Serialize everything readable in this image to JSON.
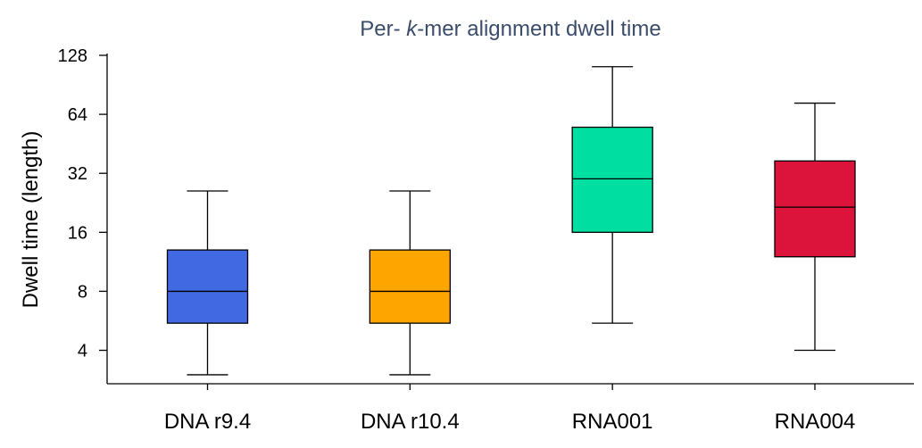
{
  "chart_data": {
    "type": "box",
    "title": {
      "prefix": "Per- ",
      "italic": "k",
      "suffix": "-mer alignment dwell time"
    },
    "xlabel": "",
    "ylabel": "Dwell time (length)",
    "yscale": "log2",
    "ylim": [
      2.7,
      128
    ],
    "yticks": [
      4,
      8,
      16,
      32,
      64,
      128
    ],
    "grid": false,
    "categories": [
      "DNA r9.4",
      "DNA r10.4",
      "RNA001",
      "RNA004"
    ],
    "boxes": [
      {
        "category": "DNA r9.4",
        "whisker_low": 3,
        "q1": 5.5,
        "median": 8,
        "q3": 13,
        "whisker_high": 26,
        "color": "#4169e1"
      },
      {
        "category": "DNA r10.4",
        "whisker_low": 3,
        "q1": 5.5,
        "median": 8,
        "q3": 13,
        "whisker_high": 26,
        "color": "#ffa500"
      },
      {
        "category": "RNA001",
        "whisker_low": 5.5,
        "q1": 16,
        "median": 30,
        "q3": 55,
        "whisker_high": 112,
        "color": "#00dfa2"
      },
      {
        "category": "RNA004",
        "whisker_low": 4,
        "q1": 12,
        "median": 21.5,
        "q3": 37,
        "whisker_high": 73,
        "color": "#dc143c"
      }
    ]
  }
}
